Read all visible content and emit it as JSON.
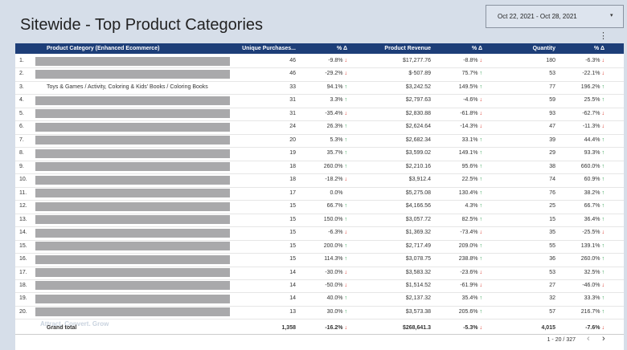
{
  "header": {
    "title": "Sitewide - Top Product Categories",
    "date_range": "Oct 22, 2021 - Oct 28, 2021"
  },
  "table": {
    "columns": [
      "Product Category (Enhanced Ecommerce)",
      "Unique Purchases...",
      "% Δ",
      "Product Revenue",
      "% Δ",
      "Quantity",
      "% Δ"
    ],
    "rows": [
      [
        "1.",
        null,
        "46",
        "-9.8%",
        "$17,277.76",
        "-8.8%",
        "180",
        "-6.3%"
      ],
      [
        "2.",
        null,
        "46",
        "-29.2%",
        "$-507.89",
        "75.7%",
        "53",
        "-22.1%"
      ],
      [
        "3.",
        "Toys & Games / Activity, Coloring & Kids' Books / Coloring Books",
        "33",
        "94.1%",
        "$3,242.52",
        "149.5%",
        "77",
        "196.2%"
      ],
      [
        "4.",
        null,
        "31",
        "3.3%",
        "$2,797.63",
        "-4.6%",
        "59",
        "25.5%"
      ],
      [
        "5.",
        null,
        "31",
        "-35.4%",
        "$2,830.88",
        "-61.8%",
        "93",
        "-62.7%"
      ],
      [
        "6.",
        null,
        "24",
        "26.3%",
        "$2,624.64",
        "-14.3%",
        "47",
        "-11.3%"
      ],
      [
        "7.",
        null,
        "20",
        "5.3%",
        "$2,682.34",
        "33.1%",
        "39",
        "44.4%"
      ],
      [
        "8.",
        null,
        "19",
        "35.7%",
        "$3,599.02",
        "149.1%",
        "29",
        "93.3%"
      ],
      [
        "9.",
        null,
        "18",
        "260.0%",
        "$2,210.16",
        "95.6%",
        "38",
        "660.0%"
      ],
      [
        "10.",
        null,
        "18",
        "-18.2%",
        "$3,912.4",
        "22.5%",
        "74",
        "60.9%"
      ],
      [
        "11.",
        null,
        "17",
        "0.0%",
        "$5,275.08",
        "130.4%",
        "76",
        "38.2%"
      ],
      [
        "12.",
        null,
        "15",
        "66.7%",
        "$4,166.56",
        "4.3%",
        "25",
        "66.7%"
      ],
      [
        "13.",
        null,
        "15",
        "150.0%",
        "$3,057.72",
        "82.5%",
        "15",
        "36.4%"
      ],
      [
        "14.",
        null,
        "15",
        "-6.3%",
        "$1,369.32",
        "-73.4%",
        "35",
        "-25.5%"
      ],
      [
        "15.",
        null,
        "15",
        "200.0%",
        "$2,717.49",
        "209.0%",
        "55",
        "139.1%"
      ],
      [
        "16.",
        null,
        "15",
        "114.3%",
        "$3,078.75",
        "238.8%",
        "36",
        "260.0%"
      ],
      [
        "17.",
        null,
        "14",
        "-30.0%",
        "$3,583.32",
        "-23.6%",
        "53",
        "32.5%"
      ],
      [
        "18.",
        null,
        "14",
        "-50.0%",
        "$1,514.52",
        "-61.9%",
        "27",
        "-46.0%"
      ],
      [
        "19.",
        null,
        "14",
        "40.0%",
        "$2,137.32",
        "35.4%",
        "32",
        "33.3%"
      ],
      [
        "20.",
        null,
        "13",
        "30.0%",
        "$3,573.38",
        "205.6%",
        "57",
        "216.7%"
      ]
    ],
    "total": {
      "label": "Grand total",
      "cells": [
        "1,358",
        "-16.2%",
        "$268,641.3",
        "-5.3%",
        "4,015",
        "-7.6%"
      ]
    }
  },
  "pagination": "1 - 20 / 327",
  "watermark": "Attract. Convert. Grow"
}
